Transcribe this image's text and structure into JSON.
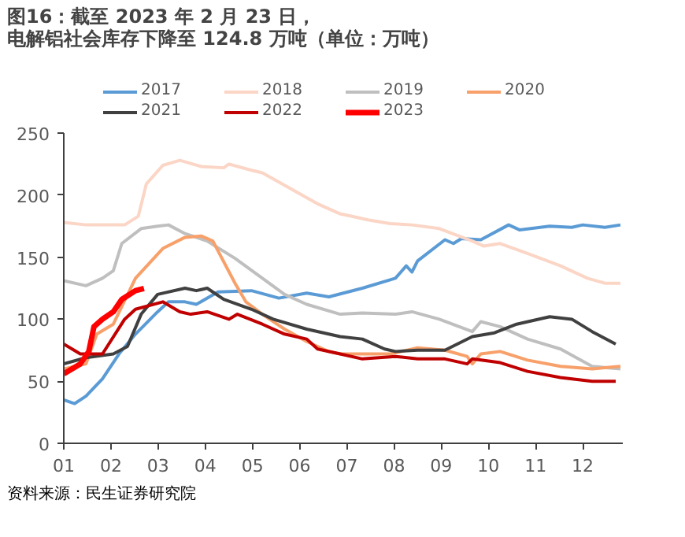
{
  "chart_data": {
    "type": "line",
    "title": "图16：截至 2023 年 2 月 23 日，电解铝社会库存下降至 124.8 万吨（单位：万吨）",
    "annotations": [
      "资料来源：民生证券研究院"
    ],
    "xlim": [
      1,
      12.85
    ],
    "xticks": [
      {
        "value": 1,
        "label": "01"
      },
      {
        "value": 2,
        "label": "02"
      },
      {
        "value": 3,
        "label": "03"
      },
      {
        "value": 4,
        "label": "04"
      },
      {
        "value": 5,
        "label": "05"
      },
      {
        "value": 6,
        "label": "06"
      },
      {
        "value": 7,
        "label": "07"
      },
      {
        "value": 8,
        "label": "08"
      },
      {
        "value": 9,
        "label": "09"
      },
      {
        "value": 10,
        "label": "10"
      },
      {
        "value": 11,
        "label": "11"
      },
      {
        "value": 12,
        "label": "12"
      }
    ],
    "ylim": [
      0,
      250
    ],
    "yticks": [
      0,
      50,
      100,
      150,
      200,
      250
    ],
    "grid": false,
    "legend": "top",
    "line_style": "solid",
    "series": [
      {
        "name": "2017",
        "color": "#5b9bd5",
        "x": [
          1,
          1.23,
          1.47,
          1.82,
          2.17,
          2.52,
          2.99,
          3.22,
          3.57,
          3.81,
          4.27,
          4.98,
          5.56,
          6.15,
          6.62,
          7.33,
          8.03,
          8.26,
          8.38,
          8.5,
          9.08,
          9.26,
          9.43,
          9.84,
          10.43,
          10.66,
          11.3,
          11.77,
          12.0,
          12.47,
          12.8
        ],
        "values": [
          35,
          32,
          38,
          52,
          72,
          88,
          106,
          114,
          114,
          112,
          122,
          123,
          117,
          121,
          118,
          125,
          133,
          143,
          138,
          147,
          164,
          161,
          165,
          164,
          176,
          172,
          175,
          174,
          176,
          174,
          176
        ]
      },
      {
        "name": "2018",
        "color": "#fbd5c5",
        "x": [
          1,
          1.47,
          2.29,
          2.58,
          2.75,
          3.1,
          3.46,
          3.92,
          4.39,
          4.5,
          4.98,
          5.21,
          5.91,
          6.38,
          6.85,
          6.98,
          7.45,
          7.92,
          8.38,
          8.96,
          9.66,
          9.9,
          10.25,
          10.83,
          11.53,
          12.1,
          12.47,
          12.8
        ],
        "values": [
          178,
          176,
          176,
          183,
          209,
          224,
          228,
          223,
          222,
          225,
          220,
          218,
          203,
          193,
          185,
          184,
          180,
          177,
          176,
          173,
          163,
          159,
          161,
          153,
          143,
          133,
          129,
          129
        ]
      },
      {
        "name": "2019",
        "color": "#bfbfbf",
        "x": [
          1,
          1.47,
          1.82,
          2.05,
          2.23,
          2.64,
          2.99,
          3.22,
          3.57,
          4.04,
          4.63,
          5.21,
          5.68,
          6.15,
          6.86,
          7.33,
          8.03,
          8.38,
          8.96,
          9.66,
          9.84,
          10.25,
          10.83,
          11.53,
          12.2,
          12.8
        ],
        "values": [
          131,
          127,
          133,
          139,
          161,
          173,
          175,
          176,
          169,
          163,
          149,
          133,
          120,
          112,
          104,
          105,
          104,
          106,
          100,
          90,
          98,
          94,
          84,
          76,
          62,
          60
        ]
      },
      {
        "name": "2020",
        "color": "#f8a06a",
        "x": [
          1,
          1.47,
          1.7,
          2.05,
          2.52,
          3.1,
          3.57,
          3.92,
          4.16,
          4.63,
          4.86,
          5.21,
          5.68,
          6.15,
          6.61,
          6.86,
          7.92,
          8.5,
          9.08,
          9.55,
          9.66,
          9.84,
          10.25,
          10.83,
          11.53,
          12.2,
          12.8
        ],
        "values": [
          60,
          64,
          88,
          96,
          133,
          157,
          166,
          167,
          163,
          129,
          114,
          104,
          92,
          82,
          74,
          72,
          72,
          77,
          75,
          70,
          64,
          72,
          74,
          67,
          62,
          60,
          62
        ]
      },
      {
        "name": "2021",
        "color": "#404040",
        "x": [
          1,
          1.47,
          2.05,
          2.35,
          2.64,
          2.99,
          3.57,
          3.81,
          4.04,
          4.39,
          4.98,
          5.44,
          6.15,
          6.86,
          7.33,
          7.8,
          8.03,
          8.5,
          9.08,
          9.66,
          10.13,
          10.6,
          11.3,
          11.77,
          12.2,
          12.7
        ],
        "values": [
          64,
          69,
          72,
          78,
          104,
          120,
          125,
          123,
          125,
          116,
          108,
          100,
          92,
          86,
          84,
          76,
          74,
          75,
          75,
          86,
          89,
          96,
          102,
          100,
          90,
          80
        ]
      },
      {
        "name": "2022",
        "color": "#c00000",
        "x": [
          1,
          1.35,
          1.82,
          2.29,
          2.52,
          3.1,
          3.46,
          3.69,
          4.04,
          4.5,
          4.68,
          5.21,
          5.68,
          6.15,
          6.38,
          6.86,
          7.33,
          8.03,
          8.5,
          9.08,
          9.55,
          9.66,
          10.25,
          10.83,
          11.53,
          12.2,
          12.7
        ],
        "values": [
          80,
          72,
          72,
          100,
          108,
          114,
          106,
          104,
          106,
          100,
          104,
          96,
          88,
          84,
          76,
          72,
          68,
          70,
          68,
          68,
          64,
          68,
          65,
          58,
          53,
          50,
          50
        ]
      },
      {
        "name": "2023",
        "color": "#ff0000",
        "x": [
          1,
          1.35,
          1.53,
          1.64,
          1.82,
          2.05,
          2.23,
          2.52,
          2.7
        ],
        "values": [
          56,
          64,
          74,
          94,
          100,
          106,
          116,
          123,
          124.8
        ]
      }
    ]
  }
}
